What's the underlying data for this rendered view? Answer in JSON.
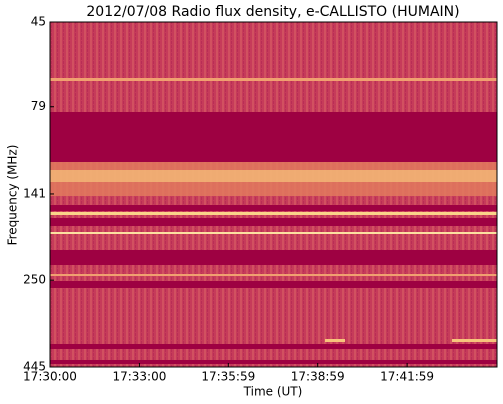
{
  "chart_data": {
    "type": "heatmap",
    "title": "2012/07/08  Radio flux density, e-CALLISTO (HUMAIN)",
    "xlabel": "Time (UT)",
    "ylabel": "Frequency (MHz)",
    "xlim": [
      0,
      900
    ],
    "xticks": [
      {
        "value": 0,
        "label": "17:30:00"
      },
      {
        "value": 180,
        "label": "17:33:00"
      },
      {
        "value": 359,
        "label": "17:35:59"
      },
      {
        "value": 539,
        "label": "17:38:59"
      },
      {
        "value": 719,
        "label": "17:41:59"
      }
    ],
    "ylim": [
      445,
      45
    ],
    "yticks": [
      45,
      79,
      141,
      250,
      445
    ],
    "ylog": true
  }
}
